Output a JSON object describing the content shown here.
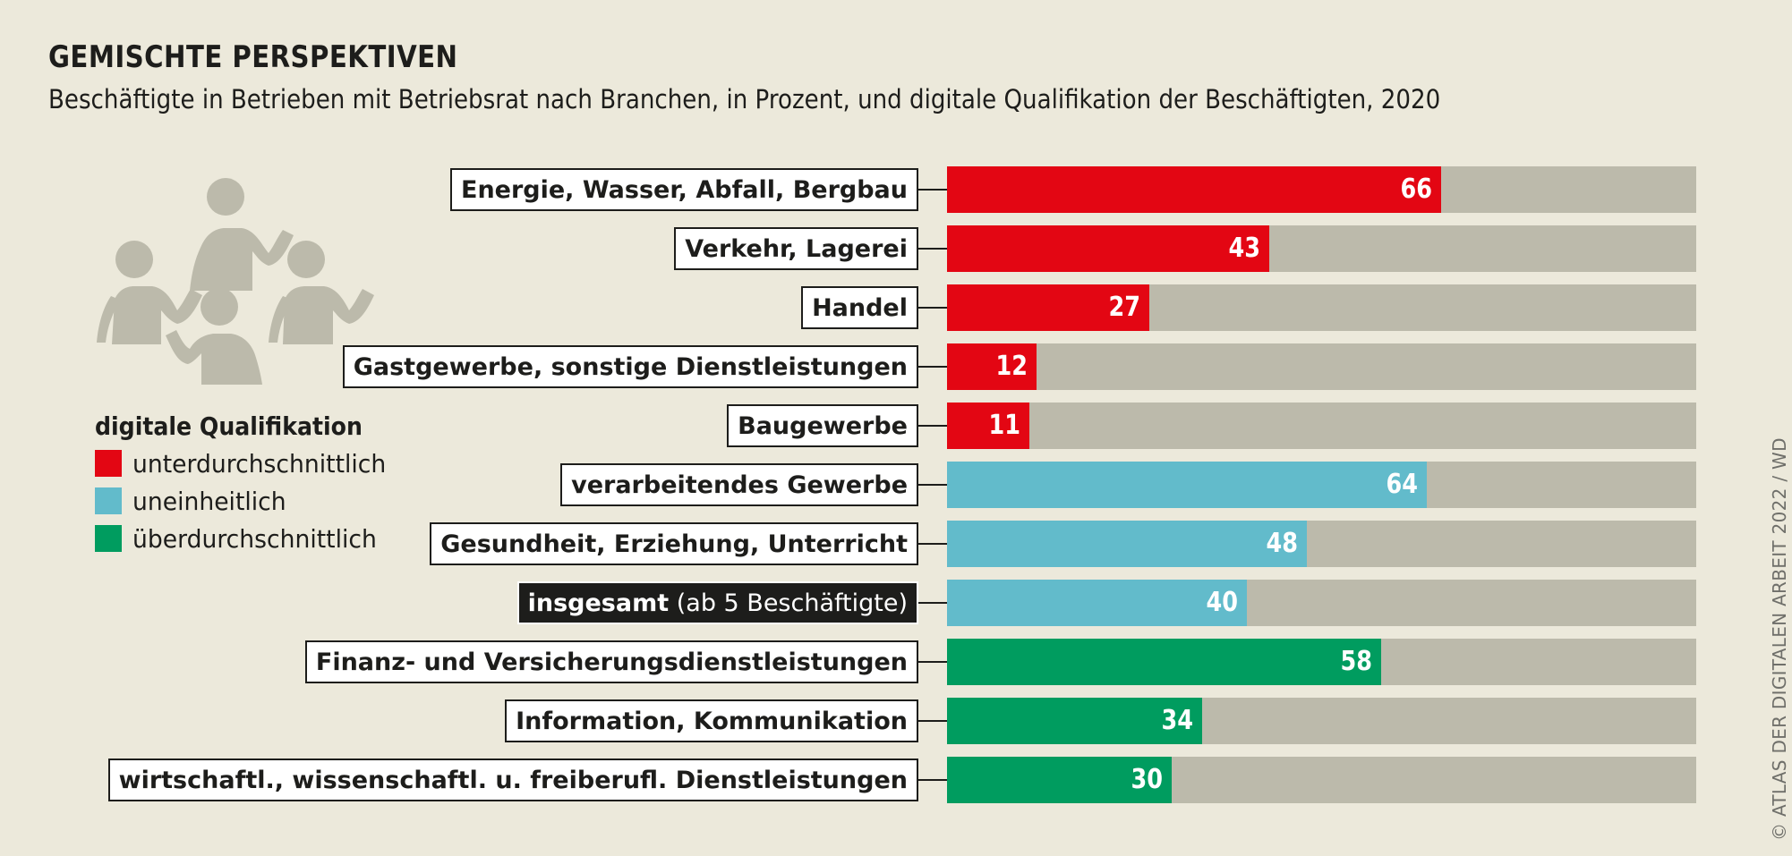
{
  "header": {
    "title": "GEMISCHTE PERSPEKTIVEN",
    "subtitle": "Beschäftigte in Betrieben mit Betriebsrat nach Branchen, in Prozent, und digitale Qualifikation der Beschäftigten, 2020"
  },
  "icon": "people-group-icon",
  "legend": {
    "title": "digitale Qualifikation",
    "items": [
      {
        "key": "unter",
        "label": "unterdurchschnittlich",
        "color": "#E30613"
      },
      {
        "key": "uneinheitlich",
        "label": "uneinheitlich",
        "color": "#62BBCB"
      },
      {
        "key": "ueber",
        "label": "überdurchschnittlich",
        "color": "#009C5F"
      }
    ]
  },
  "colors": {
    "background": "#ECE9DB",
    "track": "#BCBAAB",
    "unter": "#E30613",
    "uneinheitlich": "#62BBCB",
    "ueber": "#009C5F"
  },
  "credit": "© ATLAS DER DIGITALEN ARBEIT 2022 / WD",
  "chart_data": {
    "type": "bar",
    "orientation": "horizontal",
    "title": "GEMISCHTE PERSPEKTIVEN",
    "subtitle": "Beschäftigte in Betrieben mit Betriebsrat nach Branchen, in Prozent, und digitale Qualifikation der Beschäftigten, 2020",
    "xlabel": "",
    "ylabel": "",
    "xlim": [
      0,
      100
    ],
    "unit": "Prozent",
    "grid": false,
    "legend_position": "left",
    "categories": [
      {
        "label": "Energie, Wasser, Abfall, Bergbau",
        "value": 66,
        "group": "unter"
      },
      {
        "label": "Verkehr, Lagerei",
        "value": 43,
        "group": "unter"
      },
      {
        "label": "Handel",
        "value": 27,
        "group": "unter"
      },
      {
        "label": "Gastgewerbe, sonstige Dienstleistungen",
        "value": 12,
        "group": "unter"
      },
      {
        "label": "Baugewerbe",
        "value": 11,
        "group": "unter"
      },
      {
        "label": "verarbeitendes Gewerbe",
        "value": 64,
        "group": "uneinheitlich"
      },
      {
        "label": "Gesundheit, Erziehung, Unterricht",
        "value": 48,
        "group": "uneinheitlich"
      },
      {
        "label": "insgesamt",
        "label_suffix": " (ab 5 Beschäftigte)",
        "value": 40,
        "group": "uneinheitlich",
        "highlight": true
      },
      {
        "label": "Finanz- und Versicherungsdienstleistungen",
        "value": 58,
        "group": "ueber"
      },
      {
        "label": "Information, Kommunikation",
        "value": 34,
        "group": "ueber"
      },
      {
        "label": "wirtschaftl., wissenschaftl. u. freiberufl. Dienstleistungen",
        "value": 30,
        "group": "ueber"
      }
    ]
  }
}
